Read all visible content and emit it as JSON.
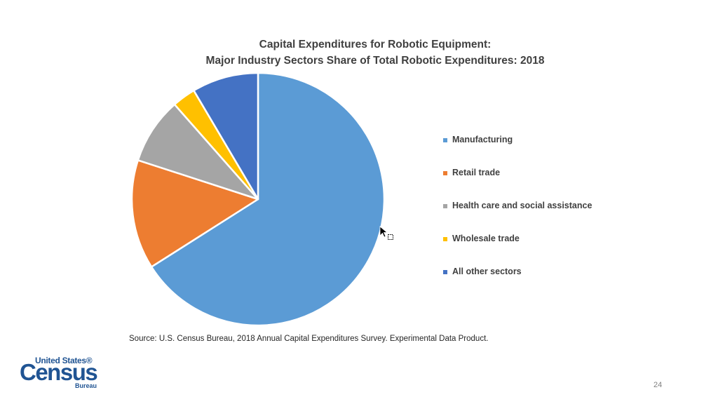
{
  "chart_data": {
    "type": "pie",
    "title": "Capital Expenditures for Robotic Equipment:",
    "subtitle": "Major Industry Sectors Share of Total Robotic Expenditures: 2018",
    "slices": [
      {
        "label": "Manufacturing",
        "value": 66,
        "color": "#5B9BD5"
      },
      {
        "label": "Retail trade",
        "value": 14,
        "color": "#ED7D31"
      },
      {
        "label": "Health care and social assistance",
        "value": 8.5,
        "color": "#A5A5A5"
      },
      {
        "label": "Wholesale trade",
        "value": 3,
        "color": "#FFC000"
      },
      {
        "label": "All other sectors",
        "value": 8.5,
        "color": "#4472C4"
      }
    ],
    "start_angle": "12 o'clock",
    "direction": "clockwise",
    "legend_position": "right"
  },
  "source": "Source: U.S. Census Bureau, 2018 Annual Capital Expenditures Survey. Experimental Data Product.",
  "logo": {
    "top": "United States®",
    "main": "Census",
    "bottom": "Bureau"
  },
  "page_number": "24",
  "cursor_icon": "pointer-with-selection-icon"
}
